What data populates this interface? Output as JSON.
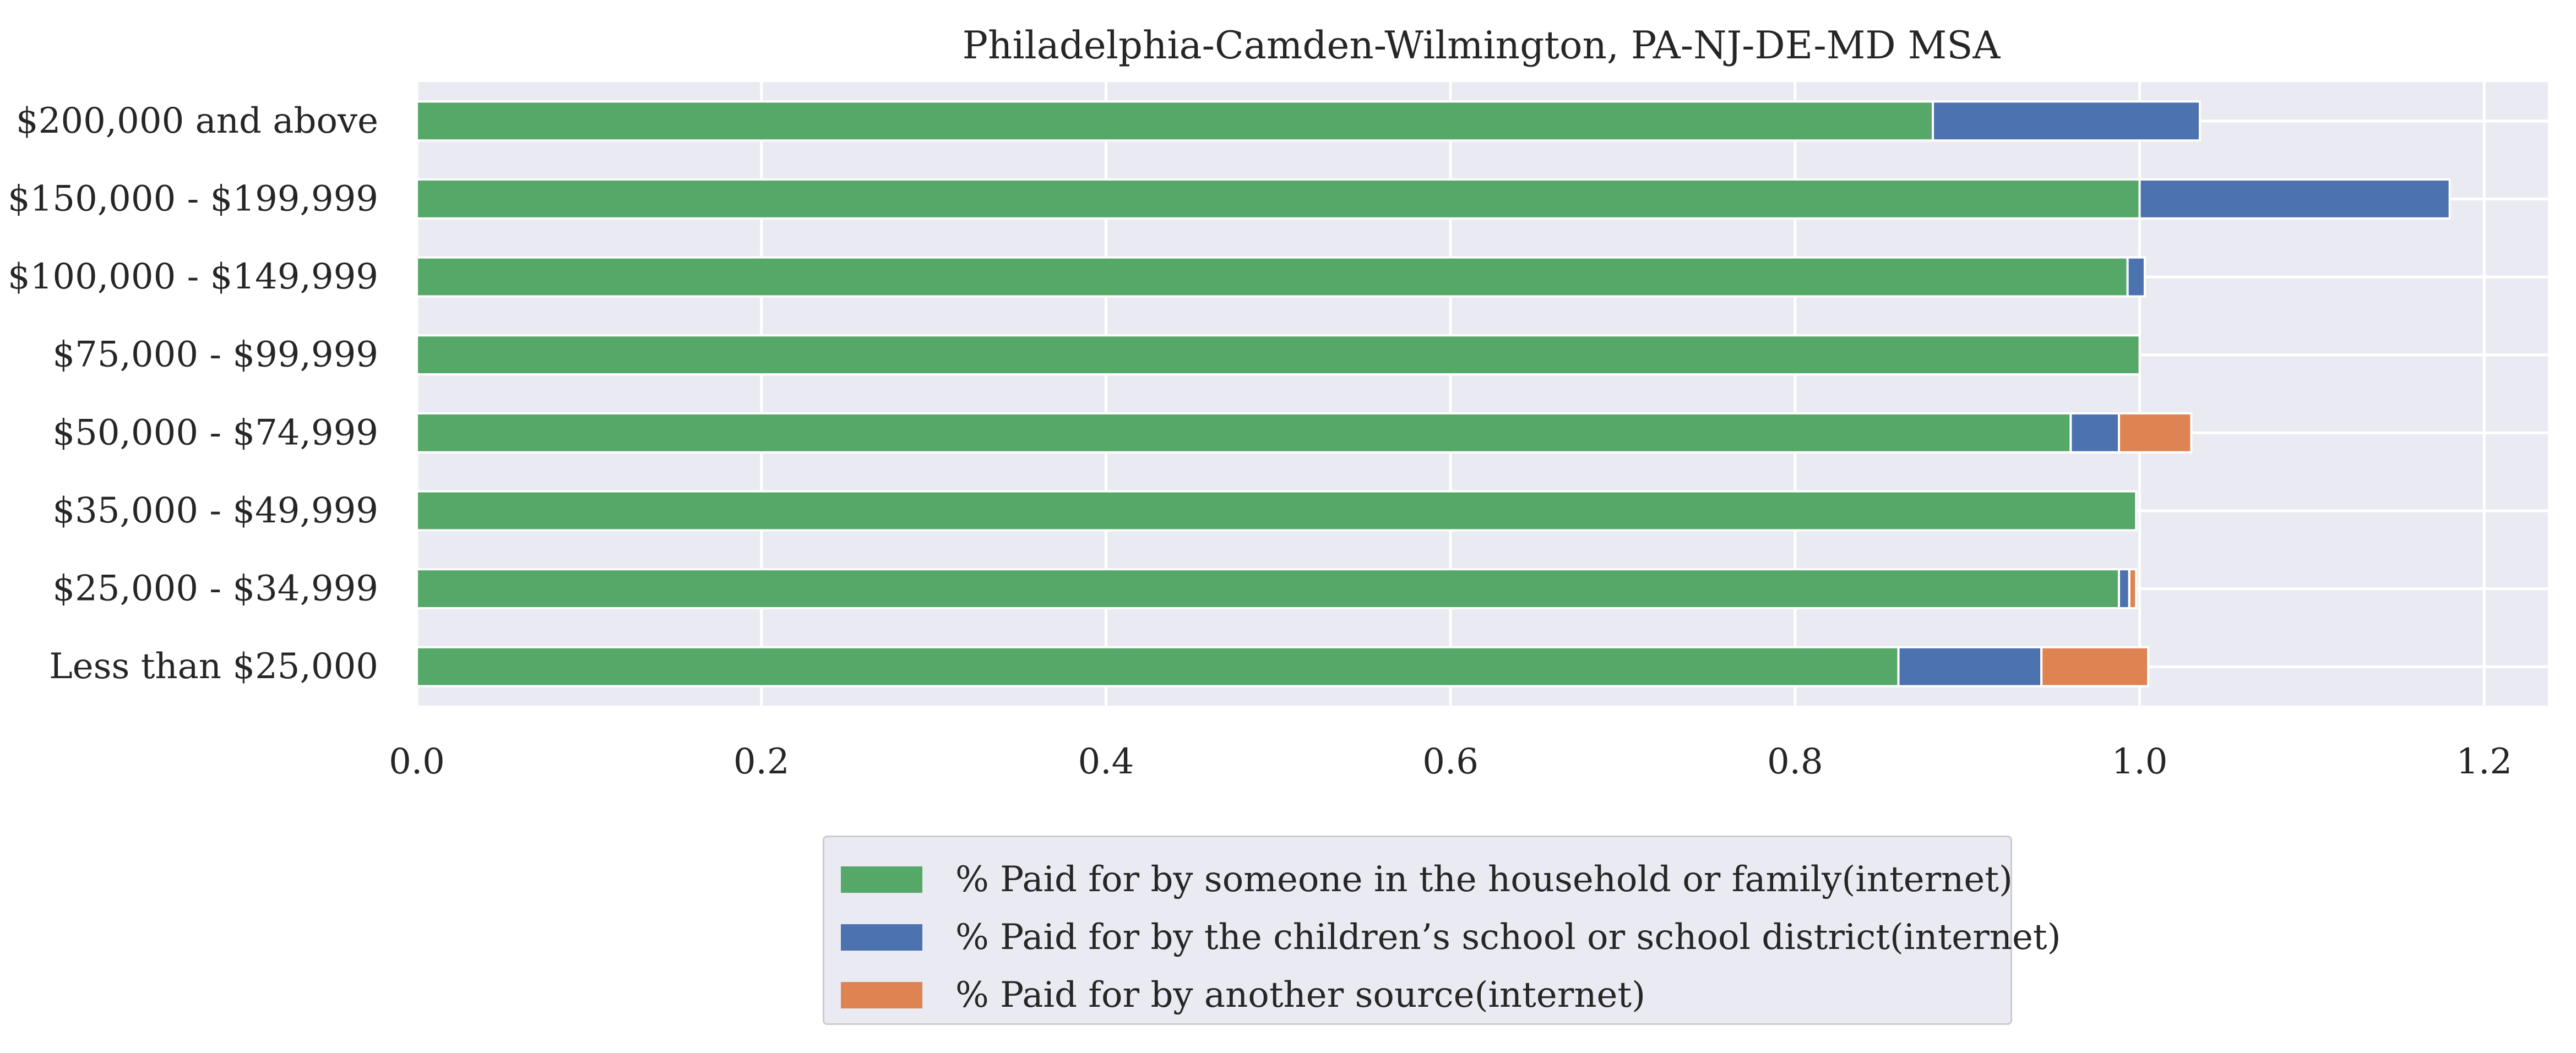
{
  "chart_data": {
    "type": "bar",
    "orientation": "horizontal",
    "stacked": true,
    "title": "Philadelphia-Camden-Wilmington, PA-NJ-DE-MD MSA",
    "xlabel": "",
    "ylabel": "",
    "categories": [
      "Less than $25,000",
      "$25,000 - $34,999",
      "$35,000 - $49,999",
      "$50,000 - $74,999",
      "$75,000 - $99,999",
      "$100,000 - $149,999",
      "$150,000 - $199,999",
      "$200,000 and above"
    ],
    "series": [
      {
        "name": "% Paid for by someone in the household or family(internet)",
        "color": "#55a868",
        "values": [
          0.86,
          0.988,
          0.998,
          0.96,
          1.0,
          0.993,
          1.0,
          0.88
        ]
      },
      {
        "name": "% Paid for by the children’s school or school district(internet)",
        "color": "#4c72b0",
        "values": [
          0.083,
          0.006,
          0.0,
          0.028,
          0.0,
          0.01,
          0.18,
          0.155
        ]
      },
      {
        "name": "% Paid for by another source(internet)",
        "color": "#dd8452",
        "values": [
          0.062,
          0.004,
          0.0,
          0.042,
          0.0,
          0.0,
          0.0,
          0.0
        ]
      }
    ],
    "xlim": [
      0,
      1.237
    ],
    "xticks": [
      0.0,
      0.2,
      0.4,
      0.6,
      0.8,
      1.0,
      1.2
    ],
    "xtick_labels": [
      "0.0",
      "0.2",
      "0.4",
      "0.6",
      "0.8",
      "1.0",
      "1.2"
    ],
    "grid": true,
    "legend_position": "bottom-center"
  }
}
